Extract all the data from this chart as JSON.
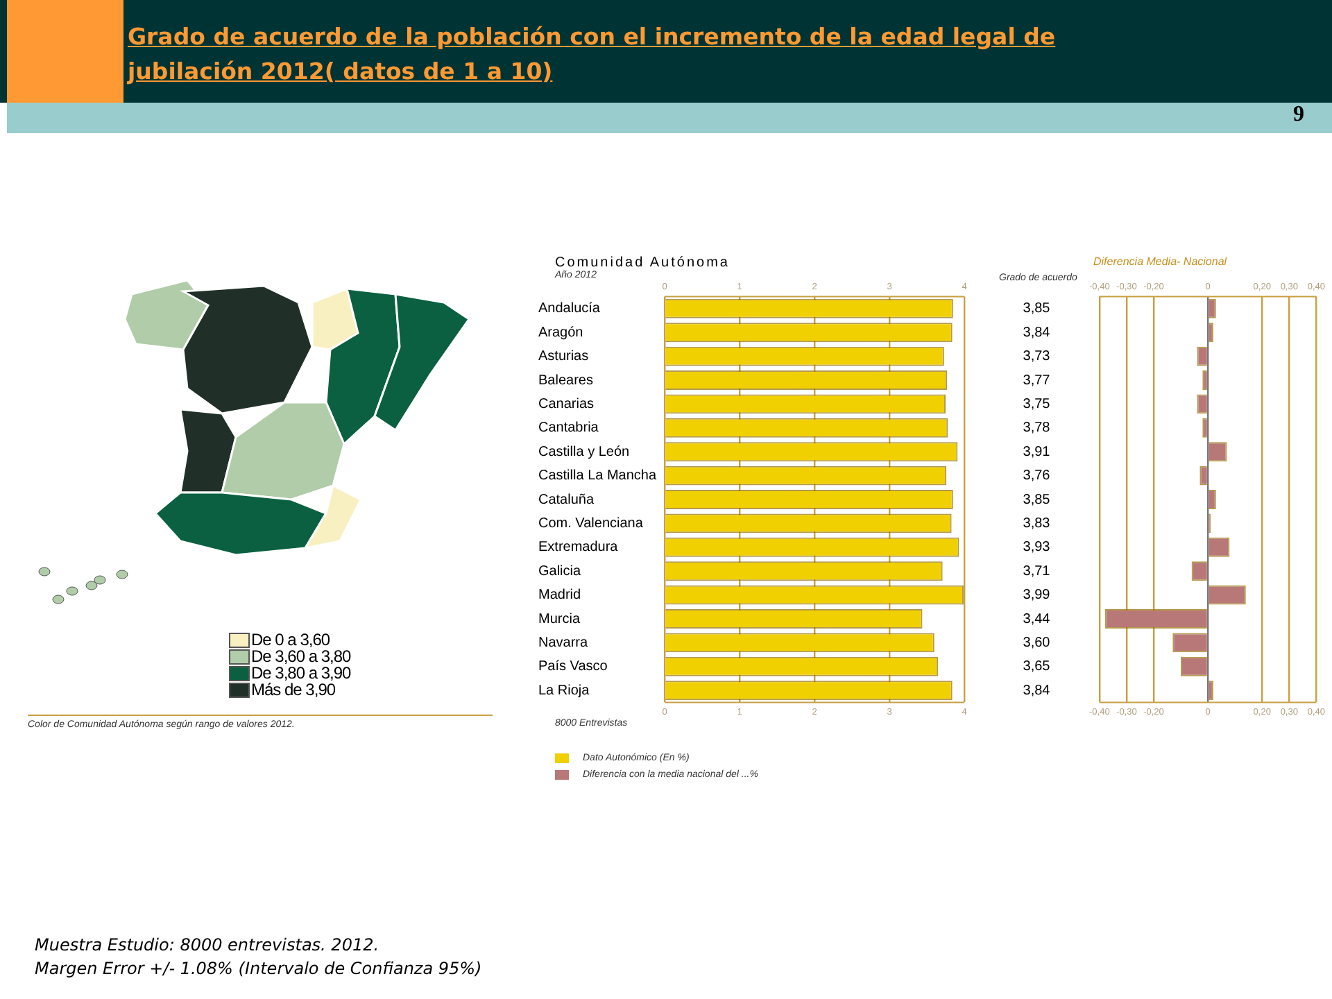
{
  "chart_data": [
    {
      "type": "other",
      "title": "Grado de acuerdo de la población con el incremento de la edad legal de jubilación 2012( datos de 1 a 10)",
      "categories": [
        "De 0 a 3,60",
        "De 3,60 a 3,80",
        "De 3,80 a 3,90",
        "Más de 3,90"
      ],
      "colors": [
        "#f8f0c0",
        "#b0cca8",
        "#0a6040",
        "#203028"
      ],
      "annotations": [
        "9",
        "Color de Comunidad Autónoma según rango de valores 2012.",
        "Muestra Estudio: 8000 entrevistas. 2012.",
        "Margen Error +/- 1.08% (Intervalo de Confianza 95%)"
      ]
    },
    {
      "type": "bar",
      "orientation": "horizontal",
      "title": "Comunidad Autónoma",
      "subtitle": "Año 2012",
      "categories": [
        "Andalucía",
        "Aragón",
        "Asturias",
        "Baleares",
        "Canarias",
        "Cantabria",
        "Castilla y León",
        "Castilla La Mancha",
        "Cataluña",
        "Com. Valenciana",
        "Extremadura",
        "Galicia",
        "Madrid",
        "Murcia",
        "Navarra",
        "País Vasco",
        "La Rioja"
      ],
      "series": [
        {
          "name": "Dato Autonómico (En %)",
          "color": "#f0d000",
          "values": [
            3.85,
            3.84,
            3.73,
            3.77,
            3.75,
            3.78,
            3.91,
            3.76,
            3.85,
            3.83,
            3.93,
            3.71,
            3.99,
            3.44,
            3.6,
            3.65,
            3.84
          ],
          "value_labels": [
            "3,85",
            "3,84",
            "3,73",
            "3,77",
            "3,75",
            "3,78",
            "3,91",
            "3,76",
            "3,85",
            "3,83",
            "3,93",
            "3,71",
            "3,99",
            "3,44",
            "3,60",
            "3,65",
            "3,84"
          ]
        }
      ],
      "xlim": [
        0,
        4
      ],
      "xticks": [
        0,
        1,
        2,
        3,
        4
      ],
      "x2lim": [
        0,
        4
      ],
      "x2ticks": [
        0,
        1,
        2,
        3,
        4
      ],
      "grid": "x",
      "legend": "bottom left",
      "annotations": [
        "Grado de acuerdo",
        "8000 Entrevistas"
      ]
    },
    {
      "type": "bar",
      "orientation": "horizontal",
      "title": "Diferencia Media- Nacional",
      "categories": [
        null,
        null,
        null,
        null,
        null,
        null,
        null,
        null,
        null,
        null,
        null,
        null,
        null,
        null,
        null,
        null,
        null
      ],
      "series": [
        {
          "name": "Diferencia con la media nacional del ...%",
          "color": "#b87878",
          "values": [
            0.03,
            0.02,
            -0.04,
            -0.02,
            -0.04,
            -0.02,
            0.07,
            -0.03,
            0.03,
            0.01,
            0.08,
            -0.06,
            0.14,
            -0.38,
            -0.13,
            -0.1,
            0.02
          ]
        }
      ],
      "xlim": [
        -0.4,
        0.4
      ],
      "xticks": [
        {
          "value": -0.4,
          "label": "-0,40"
        },
        {
          "value": -0.3,
          "label": "-0,30"
        },
        {
          "value": -0.2,
          "label": "-0,20"
        },
        0,
        {
          "value": 0.2,
          "label": "0,20"
        },
        {
          "value": 0.3,
          "label": "0,30"
        },
        {
          "value": 0.4,
          "label": "0,40"
        }
      ],
      "x2lim": [
        -0.4,
        0.4
      ],
      "x2ticks": [
        {
          "value": -0.4,
          "label": "-0,40"
        },
        {
          "value": -0.3,
          "label": "-0,30"
        },
        {
          "value": -0.2,
          "label": "-0,20"
        },
        0,
        {
          "value": 0.2,
          "label": "0,20"
        },
        {
          "value": 0.3,
          "label": "0,30"
        },
        {
          "value": 0.4,
          "label": "0,40"
        }
      ],
      "grid": "x",
      "tick_labels": "x",
      "legend": "bottom left"
    }
  ]
}
